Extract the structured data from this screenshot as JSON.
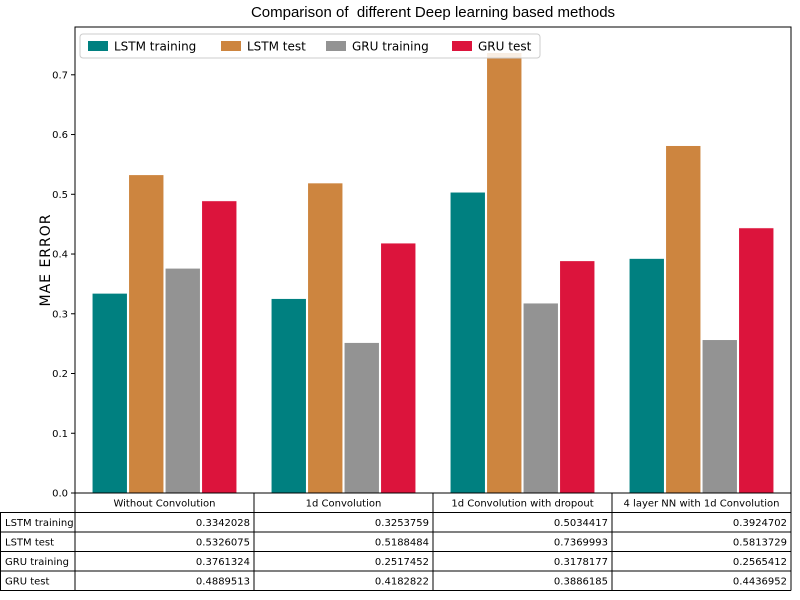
{
  "chart_data": {
    "type": "bar",
    "title": "Comparison of  different Deep learning based methods",
    "xlabel": "",
    "ylabel": "MAE ERROR",
    "ylim": [
      0,
      0.78
    ],
    "yticks": [
      0.0,
      0.1,
      0.2,
      0.3,
      0.4,
      0.5,
      0.6,
      0.7
    ],
    "ytick_labels": [
      "0.0",
      "0.1",
      "0.2",
      "0.3",
      "0.4",
      "0.5",
      "0.6",
      "0.7"
    ],
    "categories": [
      "Without Convolution",
      "1d Convolution",
      "1d Convolution with dropout",
      "4 layer NN with 1d Convolution"
    ],
    "series": [
      {
        "name": "LSTM training",
        "color": "#008080",
        "values": [
          0.3342028,
          0.3253759,
          0.5034417,
          0.3924702
        ],
        "labels": [
          "0.3342028",
          "0.3253759",
          "0.5034417",
          "0.3924702"
        ]
      },
      {
        "name": "LSTM test",
        "color": "#cd853f",
        "values": [
          0.5326075,
          0.5188484,
          0.7369993,
          0.5813729
        ],
        "labels": [
          "0.5326075",
          "0.5188484",
          "0.7369993",
          "0.5813729"
        ]
      },
      {
        "name": "GRU training",
        "color": "#939393",
        "values": [
          0.3761324,
          0.2517452,
          0.3178177,
          0.2565412
        ],
        "labels": [
          "0.3761324",
          "0.2517452",
          "0.3178177",
          "0.2565412"
        ]
      },
      {
        "name": "GRU test",
        "color": "#dc143c",
        "values": [
          0.4889513,
          0.4182822,
          0.3886185,
          0.4436952
        ],
        "labels": [
          "0.4889513",
          "0.4182822",
          "0.3886185",
          "0.4436952"
        ]
      }
    ],
    "legend": "top-left",
    "grid": false,
    "table": true
  }
}
